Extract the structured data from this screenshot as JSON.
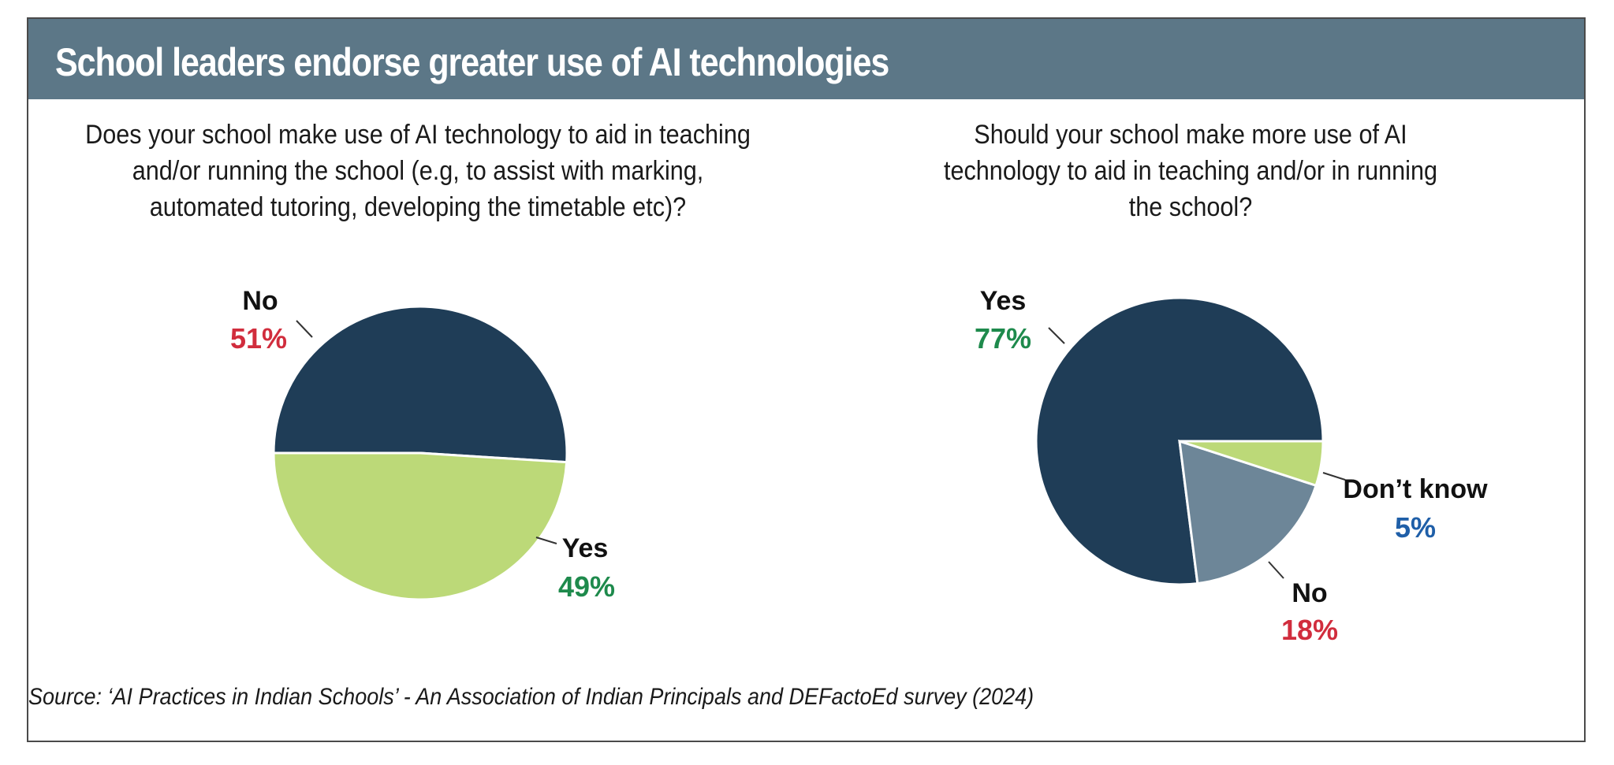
{
  "title": "School leaders endorse greater use of AI technologies",
  "colors": {
    "banner": "#5c7787",
    "dark": "#1f3d57",
    "light_green": "#bcd978",
    "gray_blue": "#6d8698",
    "red": "#d12d3d",
    "green": "#1e8a4c",
    "blue": "#1f5fa8"
  },
  "chart_data": [
    {
      "type": "pie",
      "title": "Does your school make use of AI technology to aid in teaching and/or running the school (e.g, to assist with marking, automated tutoring, developing the timetable etc)?",
      "slices": [
        {
          "label": "No",
          "value": 51,
          "display": "51%",
          "color": "#1f3d57",
          "value_color": "#d12d3d"
        },
        {
          "label": "Yes",
          "value": 49,
          "display": "49%",
          "color": "#bcd978",
          "value_color": "#1e8a4c"
        }
      ]
    },
    {
      "type": "pie",
      "title": "Should your school make more use of AI technology to aid in teaching and/or in running the school?",
      "slices": [
        {
          "label": "Yes",
          "value": 77,
          "display": "77%",
          "color": "#1f3d57",
          "value_color": "#1e8a4c"
        },
        {
          "label": "No",
          "value": 18,
          "display": "18%",
          "color": "#6d8698",
          "value_color": "#d12d3d"
        },
        {
          "label": "Don’t know",
          "value": 5,
          "display": "5%",
          "color": "#bcd978",
          "value_color": "#1f5fa8"
        }
      ]
    }
  ],
  "source": "Source: ‘AI Practices in Indian Schools’ - An Association of Indian Principals and DEFactoEd survey (2024)"
}
